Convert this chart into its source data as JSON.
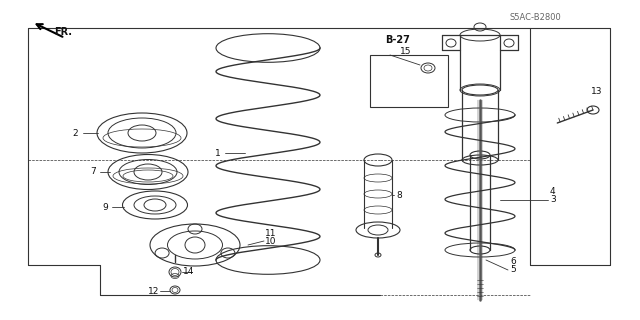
{
  "bg_color": "#ffffff",
  "line_color": "#333333",
  "text_color": "#111111",
  "gray_color": "#666666",
  "fig_width": 6.4,
  "fig_height": 3.2,
  "dpi": 100,
  "diagram_code": "S5AC-B2800",
  "page_ref": "B-27"
}
